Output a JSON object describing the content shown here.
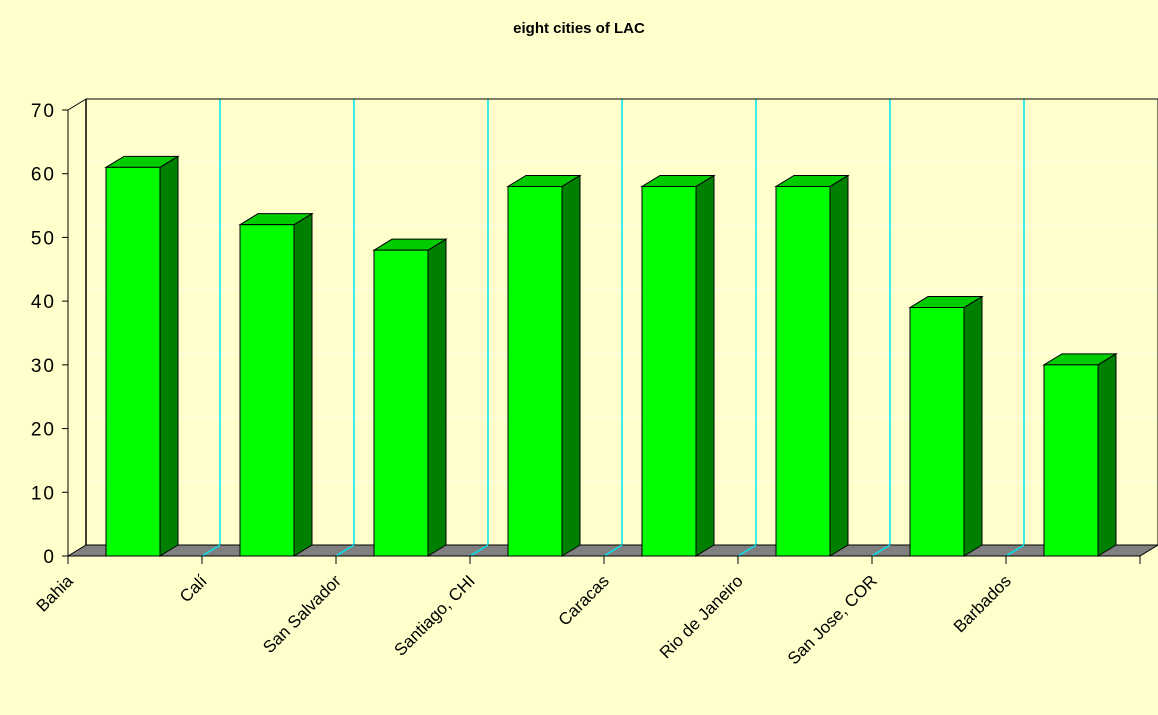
{
  "chart_data": {
    "type": "bar",
    "title": "eight cities of LAC",
    "xlabel": "",
    "ylabel": "",
    "categories": [
      "Bahia",
      "Calí",
      "San Salvador",
      "Santiago, CHI",
      "Caracas",
      "Rio de Janeiro",
      "San Jose, COR",
      "Barbados"
    ],
    "values": [
      61,
      52,
      48,
      58,
      58,
      58,
      39,
      30
    ],
    "ylim": [
      0,
      70
    ],
    "yticks": [
      "0",
      "10",
      "20",
      "30",
      "40",
      "50",
      "60",
      "70"
    ],
    "grid": true,
    "legend": "none",
    "colors": {
      "background": "#ffffcc",
      "bar_front": "#00ff00",
      "bar_side": "#008000",
      "bar_top": "#00cc00",
      "gridline": "#00e5ee",
      "floor": "#808080",
      "axis": "#000000"
    }
  }
}
